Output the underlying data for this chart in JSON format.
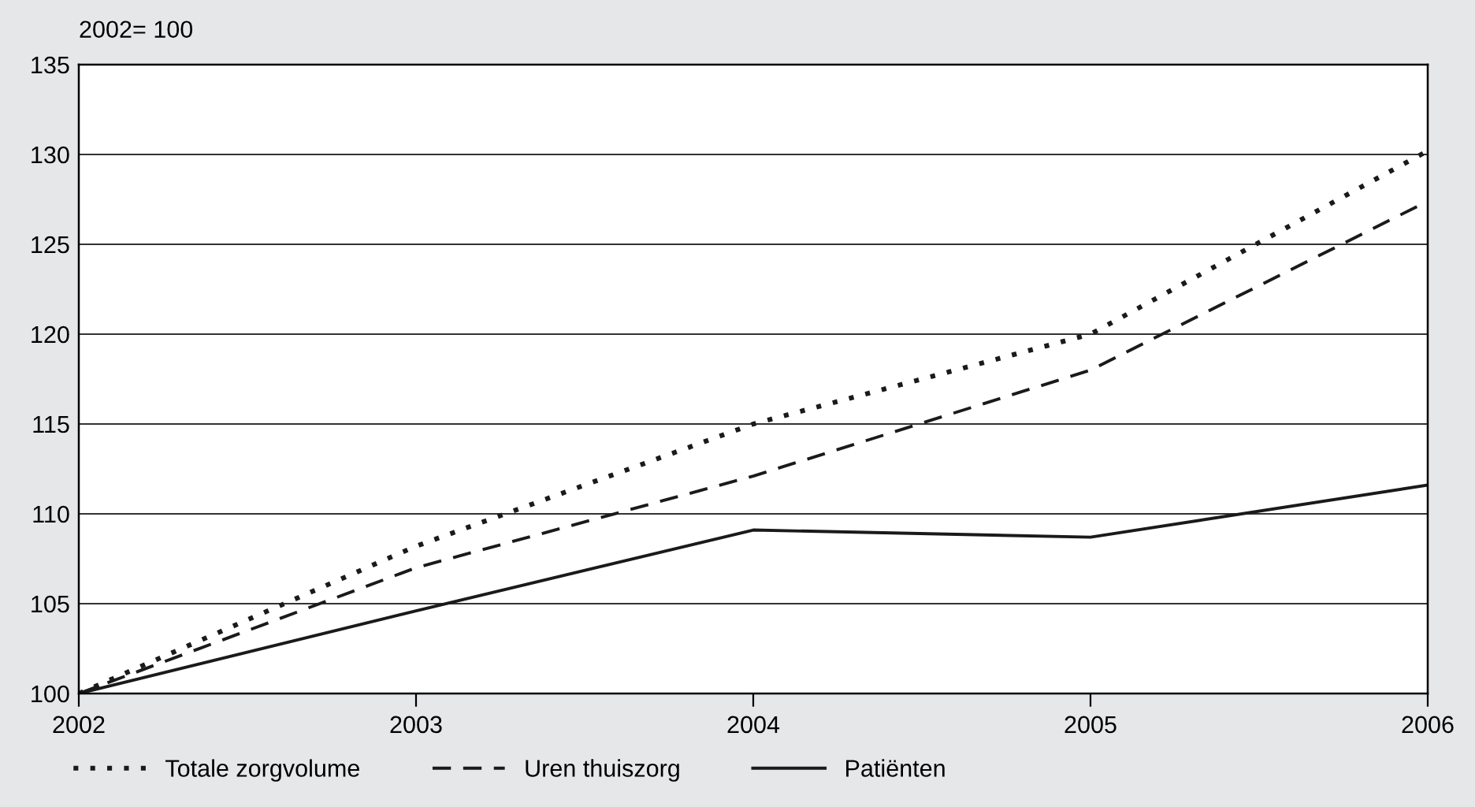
{
  "chart_data": {
    "type": "line",
    "ylabel": "2002= 100",
    "x": [
      2002,
      2003,
      2004,
      2005,
      2006
    ],
    "series": [
      {
        "name": "Totale zorgvolume",
        "color": "#1a1a1a",
        "line_style": "dotted",
        "values": [
          100,
          108.2,
          115,
          120,
          130.2
        ]
      },
      {
        "name": "Uren thuiszorg",
        "color": "#1a1a1a",
        "line_style": "dashed",
        "values": [
          100,
          107,
          112.1,
          118,
          127.4
        ]
      },
      {
        "name": "Patiënten",
        "color": "#1a1a1a",
        "line_style": "solid",
        "values": [
          100,
          104.6,
          109.1,
          108.7,
          111.6
        ]
      }
    ],
    "xlim": [
      2002,
      2006
    ],
    "xticks": [
      2002,
      2003,
      2004,
      2005,
      2006
    ],
    "ylim": [
      100,
      135
    ],
    "yticks": [
      100,
      105,
      110,
      115,
      120,
      125,
      130,
      135
    ],
    "grid": "y",
    "legend": "bottom left",
    "marker": "none"
  }
}
